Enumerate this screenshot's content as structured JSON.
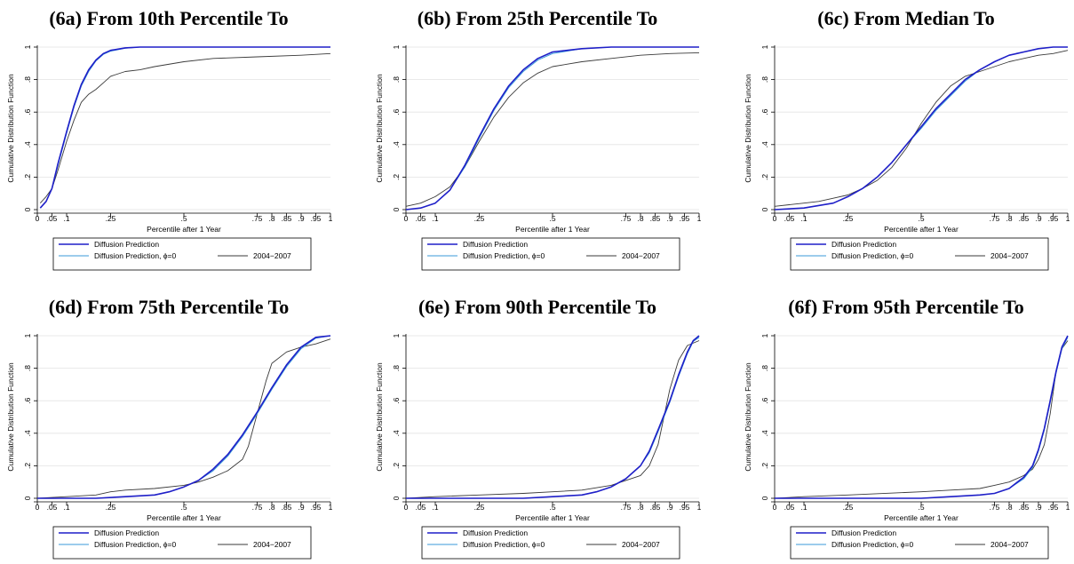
{
  "figure": {
    "colors": {
      "pred": "#1f1fc8",
      "pred_phi0": "#3a9ad9",
      "obs": "#3a3a3a",
      "grid": "#e3e3e3"
    }
  },
  "chart_data": [
    {
      "type": "line",
      "title": "(6a) From 10th Percentile To",
      "xlabel": "Percentile after 1 Year",
      "ylabel": "Cumulative Distribution Function",
      "xlim": [
        0,
        1
      ],
      "ylim": [
        0,
        1
      ],
      "xticks": [
        0,
        0.05,
        0.1,
        0.25,
        0.5,
        0.75,
        0.8,
        0.85,
        0.9,
        0.95,
        1
      ],
      "xtick_labels": [
        "0",
        ".05",
        ".1",
        ".25",
        ".5",
        ".75",
        ".8",
        ".85",
        ".9",
        ".95",
        "1"
      ],
      "yticks": [
        0,
        0.2,
        0.4,
        0.6,
        0.8,
        1
      ],
      "ytick_labels": [
        "0",
        ".2",
        ".4",
        ".6",
        ".8",
        "1"
      ],
      "grid": true,
      "legend": {
        "placement": "bottom",
        "entries": [
          "Diffusion Prediction",
          "Diffusion Prediction, ϕ=0",
          "2004−2007"
        ]
      },
      "series": [
        {
          "name": "Diffusion Prediction",
          "x": [
            0.01,
            0.03,
            0.05,
            0.07,
            0.1,
            0.125,
            0.15,
            0.175,
            0.2,
            0.225,
            0.25,
            0.3,
            0.35,
            0.4,
            0.5,
            0.75,
            1.0
          ],
          "y": [
            0.01,
            0.05,
            0.13,
            0.28,
            0.48,
            0.64,
            0.77,
            0.86,
            0.92,
            0.96,
            0.98,
            0.995,
            1,
            1,
            1,
            1,
            1
          ]
        },
        {
          "name": "Diffusion Prediction, ϕ=0",
          "x": [
            0.01,
            0.03,
            0.05,
            0.07,
            0.1,
            0.125,
            0.15,
            0.175,
            0.2,
            0.225,
            0.25,
            0.3,
            0.35,
            0.4,
            0.5,
            0.75,
            1.0
          ],
          "y": [
            0.01,
            0.05,
            0.13,
            0.27,
            0.47,
            0.63,
            0.76,
            0.85,
            0.915,
            0.955,
            0.975,
            0.993,
            1,
            1,
            1,
            1,
            1
          ]
        },
        {
          "name": "2004−2007",
          "x": [
            0.01,
            0.03,
            0.05,
            0.07,
            0.1,
            0.125,
            0.15,
            0.175,
            0.2,
            0.225,
            0.25,
            0.3,
            0.35,
            0.4,
            0.5,
            0.6,
            0.75,
            0.9,
            1.0
          ],
          "y": [
            0.04,
            0.08,
            0.13,
            0.24,
            0.42,
            0.55,
            0.66,
            0.71,
            0.74,
            0.78,
            0.82,
            0.85,
            0.86,
            0.88,
            0.91,
            0.93,
            0.94,
            0.95,
            0.96
          ]
        }
      ]
    },
    {
      "type": "line",
      "title": "(6b) From 25th Percentile To",
      "xlabel": "Percentile after 1 Year",
      "ylabel": "Cumulative Distribution Function",
      "xlim": [
        0,
        1
      ],
      "ylim": [
        0,
        1
      ],
      "xticks": [
        0,
        0.05,
        0.1,
        0.25,
        0.5,
        0.75,
        0.8,
        0.85,
        0.9,
        0.95,
        1
      ],
      "xtick_labels": [
        "0",
        ".05",
        ".1",
        ".25",
        ".5",
        ".75",
        ".8",
        ".85",
        ".9",
        ".95",
        "1"
      ],
      "yticks": [
        0,
        0.2,
        0.4,
        0.6,
        0.8,
        1
      ],
      "ytick_labels": [
        "0",
        ".2",
        ".4",
        ".6",
        ".8",
        "1"
      ],
      "grid": true,
      "legend": {
        "placement": "bottom",
        "entries": [
          "Diffusion Prediction",
          "Diffusion Prediction, ϕ=0",
          "2004−2007"
        ]
      },
      "series": [
        {
          "name": "Diffusion Prediction",
          "x": [
            0,
            0.05,
            0.1,
            0.15,
            0.2,
            0.25,
            0.3,
            0.35,
            0.4,
            0.45,
            0.5,
            0.6,
            0.7,
            0.8,
            1.0
          ],
          "y": [
            0,
            0.01,
            0.04,
            0.12,
            0.27,
            0.45,
            0.62,
            0.76,
            0.86,
            0.93,
            0.97,
            0.99,
            1,
            1,
            1
          ]
        },
        {
          "name": "Diffusion Prediction, ϕ=0",
          "x": [
            0,
            0.05,
            0.1,
            0.15,
            0.2,
            0.25,
            0.3,
            0.35,
            0.4,
            0.45,
            0.5,
            0.6,
            0.7,
            0.8,
            1.0
          ],
          "y": [
            0,
            0.01,
            0.04,
            0.12,
            0.26,
            0.44,
            0.61,
            0.75,
            0.85,
            0.92,
            0.96,
            0.99,
            1,
            1,
            1
          ]
        },
        {
          "name": "2004−2007",
          "x": [
            0,
            0.05,
            0.1,
            0.15,
            0.2,
            0.25,
            0.3,
            0.35,
            0.4,
            0.45,
            0.5,
            0.6,
            0.7,
            0.8,
            0.9,
            1.0
          ],
          "y": [
            0.02,
            0.04,
            0.08,
            0.14,
            0.26,
            0.42,
            0.57,
            0.69,
            0.78,
            0.84,
            0.88,
            0.91,
            0.93,
            0.95,
            0.96,
            0.965
          ]
        }
      ]
    },
    {
      "type": "line",
      "title": "(6c) From Median To",
      "xlabel": "Percentile after 1 Year",
      "ylabel": "Cumulative Distribution Function",
      "xlim": [
        0,
        1
      ],
      "ylim": [
        0,
        1
      ],
      "xticks": [
        0,
        0.05,
        0.1,
        0.25,
        0.5,
        0.75,
        0.8,
        0.85,
        0.9,
        0.95,
        1
      ],
      "xtick_labels": [
        "0",
        ".05",
        ".1",
        ".25",
        ".5",
        ".75",
        ".8",
        ".85",
        ".9",
        ".95",
        "1"
      ],
      "yticks": [
        0,
        0.2,
        0.4,
        0.6,
        0.8,
        1
      ],
      "ytick_labels": [
        "0",
        ".2",
        ".4",
        ".6",
        ".8",
        "1"
      ],
      "grid": true,
      "legend": {
        "placement": "bottom",
        "entries": [
          "Diffusion Prediction",
          "Diffusion Prediction, ϕ=0",
          "2004−2007"
        ]
      },
      "series": [
        {
          "name": "Diffusion Prediction",
          "x": [
            0,
            0.1,
            0.2,
            0.25,
            0.3,
            0.35,
            0.4,
            0.45,
            0.5,
            0.55,
            0.6,
            0.65,
            0.7,
            0.75,
            0.8,
            0.85,
            0.9,
            0.95,
            1.0
          ],
          "y": [
            0,
            0.01,
            0.04,
            0.08,
            0.13,
            0.2,
            0.29,
            0.4,
            0.51,
            0.62,
            0.71,
            0.8,
            0.86,
            0.91,
            0.95,
            0.97,
            0.99,
            1,
            1
          ]
        },
        {
          "name": "Diffusion Prediction, ϕ=0",
          "x": [
            0,
            0.1,
            0.2,
            0.25,
            0.3,
            0.35,
            0.4,
            0.45,
            0.5,
            0.55,
            0.6,
            0.65,
            0.7,
            0.75,
            0.8,
            0.85,
            0.9,
            0.95,
            1.0
          ],
          "y": [
            0,
            0.01,
            0.04,
            0.08,
            0.13,
            0.2,
            0.29,
            0.4,
            0.5,
            0.61,
            0.7,
            0.79,
            0.86,
            0.91,
            0.95,
            0.97,
            0.99,
            1,
            1
          ]
        },
        {
          "name": "2004−2007",
          "x": [
            0,
            0.05,
            0.1,
            0.15,
            0.2,
            0.25,
            0.3,
            0.35,
            0.4,
            0.45,
            0.5,
            0.55,
            0.6,
            0.65,
            0.7,
            0.75,
            0.8,
            0.85,
            0.9,
            0.95,
            1.0
          ],
          "y": [
            0.02,
            0.03,
            0.04,
            0.05,
            0.07,
            0.09,
            0.13,
            0.18,
            0.26,
            0.38,
            0.53,
            0.66,
            0.76,
            0.82,
            0.85,
            0.88,
            0.91,
            0.93,
            0.95,
            0.96,
            0.98
          ]
        }
      ]
    },
    {
      "type": "line",
      "title": "(6d) From 75th Percentile To",
      "xlabel": "Percentile after 1 Year",
      "ylabel": "Cumulative Distribution Function",
      "xlim": [
        0,
        1
      ],
      "ylim": [
        0,
        1
      ],
      "xticks": [
        0,
        0.05,
        0.1,
        0.25,
        0.5,
        0.75,
        0.8,
        0.85,
        0.9,
        0.95,
        1
      ],
      "xtick_labels": [
        "0",
        ".05",
        ".1",
        ".25",
        ".5",
        ".75",
        ".8",
        ".85",
        ".9",
        ".95",
        "1"
      ],
      "yticks": [
        0,
        0.2,
        0.4,
        0.6,
        0.8,
        1
      ],
      "ytick_labels": [
        "0",
        ".2",
        ".4",
        ".6",
        ".8",
        "1"
      ],
      "grid": true,
      "legend": {
        "placement": "bottom",
        "entries": [
          "Diffusion Prediction",
          "Diffusion Prediction, ϕ=0",
          "2004−2007"
        ]
      },
      "series": [
        {
          "name": "Diffusion Prediction",
          "x": [
            0,
            0.2,
            0.3,
            0.4,
            0.45,
            0.5,
            0.55,
            0.6,
            0.65,
            0.7,
            0.75,
            0.8,
            0.85,
            0.9,
            0.95,
            1.0
          ],
          "y": [
            0,
            0,
            0.01,
            0.02,
            0.04,
            0.07,
            0.11,
            0.18,
            0.27,
            0.39,
            0.53,
            0.68,
            0.82,
            0.93,
            0.99,
            1
          ]
        },
        {
          "name": "Diffusion Prediction, ϕ=0",
          "x": [
            0,
            0.2,
            0.3,
            0.4,
            0.45,
            0.5,
            0.55,
            0.6,
            0.65,
            0.7,
            0.75,
            0.8,
            0.85,
            0.9,
            0.95,
            1.0
          ],
          "y": [
            0,
            0,
            0.01,
            0.02,
            0.04,
            0.07,
            0.11,
            0.17,
            0.26,
            0.38,
            0.52,
            0.67,
            0.81,
            0.92,
            0.985,
            1
          ]
        },
        {
          "name": "2004−2007",
          "x": [
            0,
            0.1,
            0.2,
            0.25,
            0.3,
            0.4,
            0.5,
            0.55,
            0.6,
            0.65,
            0.7,
            0.72,
            0.75,
            0.78,
            0.8,
            0.85,
            0.9,
            0.95,
            1.0
          ],
          "y": [
            0,
            0.01,
            0.02,
            0.04,
            0.05,
            0.06,
            0.08,
            0.1,
            0.13,
            0.17,
            0.24,
            0.32,
            0.52,
            0.72,
            0.83,
            0.9,
            0.93,
            0.95,
            0.98
          ]
        }
      ]
    },
    {
      "type": "line",
      "title": "(6e) From 90th Percentile To",
      "xlabel": "Percentile after 1 Year",
      "ylabel": "Cumulative Distribution Function",
      "xlim": [
        0,
        1
      ],
      "ylim": [
        0,
        1
      ],
      "xticks": [
        0,
        0.05,
        0.1,
        0.25,
        0.5,
        0.75,
        0.8,
        0.85,
        0.9,
        0.95,
        1
      ],
      "xtick_labels": [
        "0",
        ".05",
        ".1",
        ".25",
        ".5",
        ".75",
        ".8",
        ".85",
        ".9",
        ".95",
        "1"
      ],
      "yticks": [
        0,
        0.2,
        0.4,
        0.6,
        0.8,
        1
      ],
      "ytick_labels": [
        "0",
        ".2",
        ".4",
        ".6",
        ".8",
        "1"
      ],
      "grid": true,
      "legend": {
        "placement": "bottom",
        "entries": [
          "Diffusion Prediction",
          "Diffusion Prediction, ϕ=0",
          "2004−2007"
        ]
      },
      "series": [
        {
          "name": "Diffusion Prediction",
          "x": [
            0,
            0.4,
            0.5,
            0.6,
            0.65,
            0.7,
            0.75,
            0.8,
            0.83,
            0.86,
            0.9,
            0.93,
            0.96,
            0.98,
            1.0
          ],
          "y": [
            0,
            0,
            0.01,
            0.02,
            0.04,
            0.07,
            0.12,
            0.2,
            0.29,
            0.42,
            0.6,
            0.76,
            0.9,
            0.97,
            1
          ]
        },
        {
          "name": "Diffusion Prediction, ϕ=0",
          "x": [
            0,
            0.4,
            0.5,
            0.6,
            0.65,
            0.7,
            0.75,
            0.8,
            0.83,
            0.86,
            0.9,
            0.93,
            0.96,
            0.98,
            1.0
          ],
          "y": [
            0,
            0,
            0.01,
            0.02,
            0.04,
            0.07,
            0.12,
            0.2,
            0.28,
            0.41,
            0.59,
            0.75,
            0.89,
            0.965,
            0.99
          ]
        },
        {
          "name": "2004−2007",
          "x": [
            0,
            0.1,
            0.25,
            0.4,
            0.5,
            0.6,
            0.7,
            0.75,
            0.8,
            0.83,
            0.86,
            0.88,
            0.9,
            0.93,
            0.96,
            1.0
          ],
          "y": [
            0,
            0.01,
            0.02,
            0.03,
            0.04,
            0.05,
            0.08,
            0.11,
            0.14,
            0.2,
            0.33,
            0.5,
            0.67,
            0.85,
            0.94,
            0.97
          ]
        }
      ]
    },
    {
      "type": "line",
      "title": "(6f) From 95th Percentile To",
      "xlabel": "Percentile after 1 Year",
      "ylabel": "Cumulative Distribution Function",
      "xlim": [
        0,
        1
      ],
      "ylim": [
        0,
        1
      ],
      "xticks": [
        0,
        0.05,
        0.1,
        0.25,
        0.5,
        0.75,
        0.8,
        0.85,
        0.9,
        0.95,
        1
      ],
      "xtick_labels": [
        "0",
        ".05",
        ".1",
        ".25",
        ".5",
        ".75",
        ".8",
        ".85",
        ".9",
        ".95",
        "1"
      ],
      "yticks": [
        0,
        0.2,
        0.4,
        0.6,
        0.8,
        1
      ],
      "ytick_labels": [
        "0",
        ".2",
        ".4",
        ".6",
        ".8",
        "1"
      ],
      "grid": true,
      "legend": {
        "placement": "bottom",
        "entries": [
          "Diffusion Prediction",
          "Diffusion Prediction, ϕ=0",
          "2004−2007"
        ]
      },
      "series": [
        {
          "name": "Diffusion Prediction",
          "x": [
            0,
            0.5,
            0.6,
            0.7,
            0.75,
            0.8,
            0.85,
            0.88,
            0.9,
            0.92,
            0.94,
            0.96,
            0.98,
            1.0
          ],
          "y": [
            0,
            0,
            0.01,
            0.02,
            0.03,
            0.06,
            0.13,
            0.2,
            0.3,
            0.43,
            0.6,
            0.78,
            0.93,
            1
          ]
        },
        {
          "name": "Diffusion Prediction, ϕ=0",
          "x": [
            0,
            0.5,
            0.6,
            0.7,
            0.75,
            0.8,
            0.85,
            0.88,
            0.9,
            0.92,
            0.94,
            0.96,
            0.98,
            1.0
          ],
          "y": [
            0,
            0,
            0.01,
            0.02,
            0.03,
            0.06,
            0.12,
            0.19,
            0.29,
            0.42,
            0.59,
            0.77,
            0.92,
            0.99
          ]
        },
        {
          "name": "2004−2007",
          "x": [
            0,
            0.1,
            0.25,
            0.5,
            0.6,
            0.7,
            0.75,
            0.8,
            0.85,
            0.88,
            0.9,
            0.92,
            0.94,
            0.96,
            0.98,
            1.0
          ],
          "y": [
            0,
            0.01,
            0.02,
            0.04,
            0.05,
            0.06,
            0.08,
            0.1,
            0.14,
            0.18,
            0.24,
            0.33,
            0.52,
            0.78,
            0.92,
            0.97
          ]
        }
      ]
    }
  ]
}
